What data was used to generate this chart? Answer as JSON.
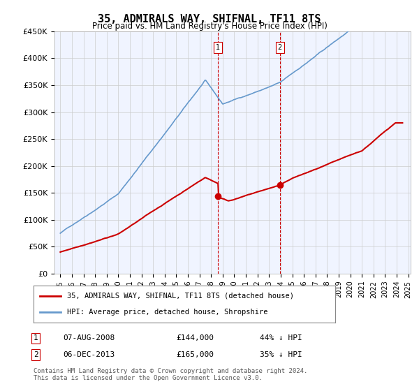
{
  "title": "35, ADMIRALS WAY, SHIFNAL, TF11 8TS",
  "subtitle": "Price paid vs. HM Land Registry's House Price Index (HPI)",
  "ylabel_ticks": [
    "£0",
    "£50K",
    "£100K",
    "£150K",
    "£200K",
    "£250K",
    "£300K",
    "£350K",
    "£400K",
    "£450K"
  ],
  "ylim": [
    0,
    450000
  ],
  "xlim_start": 1995,
  "xlim_end": 2025,
  "legend_line1": "35, ADMIRALS WAY, SHIFNAL, TF11 8TS (detached house)",
  "legend_line2": "HPI: Average price, detached house, Shropshire",
  "sale1_date": "07-AUG-2008",
  "sale1_price": "£144,000",
  "sale1_hpi": "44% ↓ HPI",
  "sale1_x": 2008.6,
  "sale1_y": 144000,
  "sale2_date": "06-DEC-2013",
  "sale2_price": "£165,000",
  "sale2_hpi": "35% ↓ HPI",
  "sale2_x": 2013.92,
  "sale2_y": 165000,
  "footnote": "Contains HM Land Registry data © Crown copyright and database right 2024.\nThis data is licensed under the Open Government Licence v3.0.",
  "red_color": "#cc0000",
  "blue_color": "#6699cc",
  "vline_color": "#cc0000",
  "background_color": "#f0f4ff",
  "plot_bg": "#ffffff"
}
